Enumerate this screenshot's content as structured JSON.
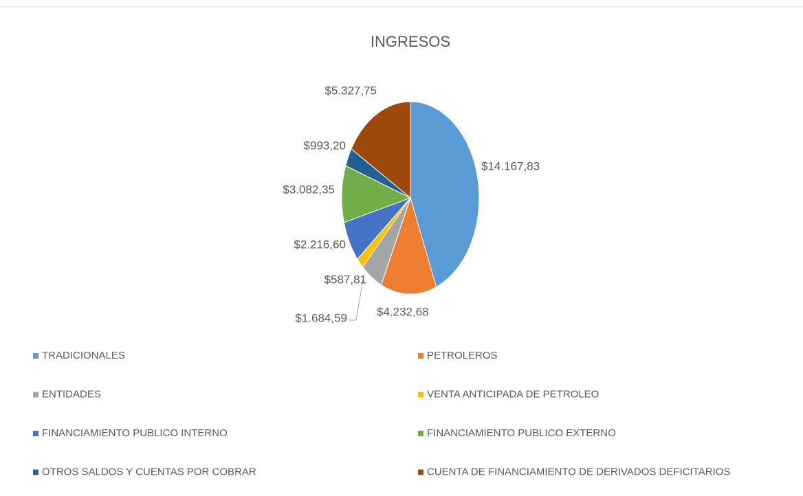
{
  "chart_data": {
    "type": "pie",
    "title": "INGRESOS",
    "categories": [
      "TRADICIONALES",
      "PETROLEROS",
      "ENTIDADES",
      "VENTA ANTICIPADA DE PETROLEO",
      "FINANCIAMIENTO PUBLICO INTERNO",
      "FINANCIAMIENTO PUBLICO EXTERNO",
      "OTROS SALDOS Y CUENTAS POR COBRAR",
      "CUENTA DE FINANCIAMIENTO DE DERIVADOS DEFICITARIOS"
    ],
    "values": [
      14167.83,
      4232.68,
      1684.59,
      587.81,
      2216.6,
      3082.35,
      993.2,
      5327.75
    ],
    "value_labels": [
      "$14.167,83",
      "$4.232,68",
      "$1.684,59",
      "$587,81",
      "$2.216,60",
      "$3.082,35",
      "$993,20",
      "$5.327,75"
    ],
    "colors": [
      "#5B9BD5",
      "#ED7D31",
      "#A5A5A5",
      "#FFC000",
      "#4472C4",
      "#70AD47",
      "#255E91",
      "#9E480E"
    ],
    "legend": "bottom"
  }
}
